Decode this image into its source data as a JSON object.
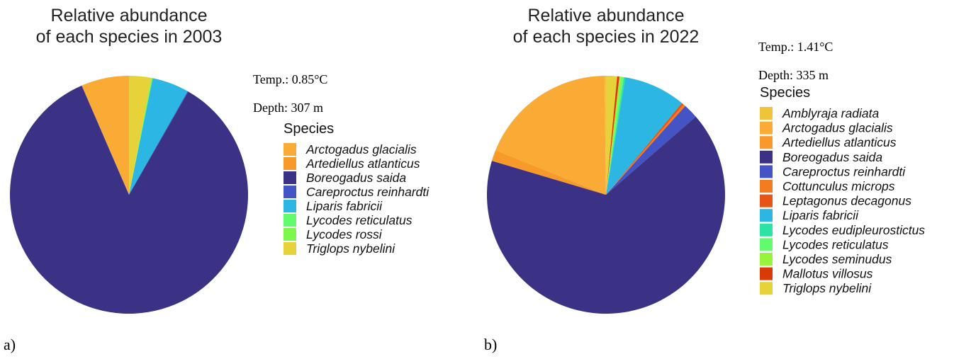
{
  "chart_data": [
    {
      "type": "pie",
      "title": "Relative abundance\nof each species in 2003",
      "annotations": [
        "Temp.: 0.85°C",
        "Depth: 307 m"
      ],
      "legend_title": "Species",
      "panel_label": "a)",
      "categories": [
        "Arctogadus glacialis",
        "Artediellus atlanticus",
        "Boreogadus saida",
        "Careproctus reinhardti",
        "Liparis fabricii",
        "Lycodes reticulatus",
        "Lycodes rossi",
        "Triglops nybelini"
      ],
      "values": [
        6.4,
        0.1,
        85.2,
        0.1,
        5.0,
        0.1,
        0.1,
        3.0
      ],
      "colors": [
        "#f9ab35",
        "#f89a2a",
        "#3b3185",
        "#4454c4",
        "#2bb6e4",
        "#62fb6d",
        "#7cf74a",
        "#e6d33a"
      ]
    },
    {
      "type": "pie",
      "title": "Relative abundance\nof each species in 2022",
      "annotations": [
        "Temp.: 1.41°C",
        "Depth: 335 m"
      ],
      "legend_title": "Species",
      "panel_label": "b)",
      "categories": [
        "Amblyraja radiata",
        "Arctogadus glacialis",
        "Artediellus atlanticus",
        "Boreogadus saida",
        "Careproctus reinhardti",
        "Cottunculus microps",
        "Leptagonus decagonus",
        "Liparis fabricii",
        "Lycodes eudipleurostictus",
        "Lycodes reticulatus",
        "Lycodes seminudus",
        "Mallotus villosus",
        "Triglops nybelini"
      ],
      "values": [
        0.2,
        18.7,
        1.5,
        66.0,
        2.0,
        0.3,
        0.3,
        8.4,
        0.2,
        0.3,
        0.3,
        0.3,
        1.5
      ],
      "colors": [
        "#efc43b",
        "#f9ab35",
        "#f89a2a",
        "#3b3185",
        "#4454c4",
        "#f47c1d",
        "#e65416",
        "#2bb6e4",
        "#2ae3a5",
        "#62fb6d",
        "#98f43a",
        "#d93a06",
        "#e6d33a"
      ]
    }
  ]
}
